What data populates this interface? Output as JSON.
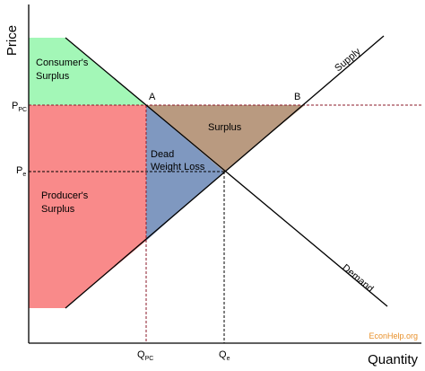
{
  "axes": {
    "y_label": "Price",
    "x_label": "Quantity"
  },
  "areas": {
    "consumer_surplus": [
      "Consumer's",
      "Surplus"
    ],
    "producer_surplus": [
      "Producer's",
      "Surplus"
    ],
    "surplus": "Surplus",
    "dead_weight_loss": [
      "Dead",
      "Weight Loss"
    ]
  },
  "curves": {
    "supply": "Supply",
    "demand": "Demand"
  },
  "points": {
    "a": "A",
    "b": "B"
  },
  "price_levels": {
    "p_pc": {
      "main": "P",
      "sub": "PC"
    },
    "p_e": {
      "main": "P",
      "sub": "e"
    }
  },
  "quantity_levels": {
    "q_pc": {
      "main": "Q",
      "sub": "PC"
    },
    "q_e": {
      "main": "Q",
      "sub": "e"
    }
  },
  "watermark": "EconHelp.org"
}
